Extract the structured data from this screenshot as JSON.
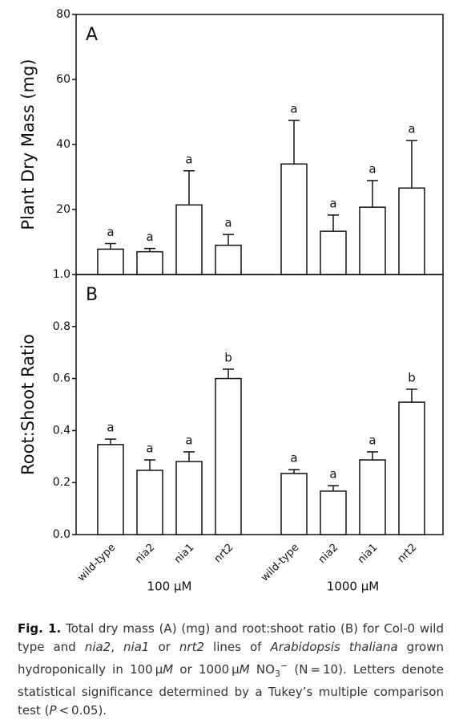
{
  "chart_data": [
    {
      "type": "bar",
      "panel_label": "A",
      "y_label": "Plant Dry Mass (mg)",
      "values": [
        7.8,
        7.0,
        21.4,
        9.0,
        34.0,
        13.3,
        20.7,
        26.6
      ],
      "errors": [
        1.7,
        1.0,
        10.5,
        3.3,
        13.4,
        5.0,
        8.2,
        14.6
      ],
      "letters": [
        "a",
        "a",
        "a",
        "a",
        "a",
        "a",
        "a",
        "a"
      ],
      "color": "#ffffff",
      "ylim": [
        0,
        80
      ],
      "yticks": [
        20,
        40,
        60,
        80
      ]
    },
    {
      "type": "bar",
      "panel_label": "B",
      "y_label": "Root:Shoot Ratio",
      "categories": [
        "wild-type",
        "nia2",
        "nia1",
        "nrt2",
        "wild-type",
        "nia2",
        "nia1",
        "nrt2"
      ],
      "groups": [
        "100 μM",
        "1000 μM"
      ],
      "values": [
        0.346,
        0.247,
        0.281,
        0.6,
        0.235,
        0.167,
        0.287,
        0.509
      ],
      "errors": [
        0.021,
        0.04,
        0.037,
        0.036,
        0.015,
        0.021,
        0.031,
        0.05
      ],
      "letters": [
        "a",
        "a",
        "a",
        "b",
        "a",
        "a",
        "a",
        "b"
      ],
      "color": "#ffffff",
      "ylim": [
        0,
        1
      ],
      "yticks": [
        {
          "value": 0,
          "label": "0.0"
        },
        0.2,
        0.4,
        0.6,
        0.8,
        {
          "value": 1,
          "label": "1.0"
        }
      ]
    }
  ],
  "caption": {
    "label": "Fig.  1.",
    "segments": [
      {
        "text": " Total dry mass (A) (mg) and root:shoot ratio (B) for Col-0 wild type and "
      },
      {
        "text": "nia2",
        "italic": true
      },
      {
        "text": ", "
      },
      {
        "text": "nia1",
        "italic": true
      },
      {
        "text": " or "
      },
      {
        "text": "nrt2",
        "italic": true
      },
      {
        "text": " lines of "
      },
      {
        "text": "Arabidopsis thaliana",
        "italic": true
      },
      {
        "text": " grown hydroponically in 100 μ"
      },
      {
        "text": "M",
        "italic": true
      },
      {
        "text": " or 1000 μ"
      },
      {
        "text": "M",
        "italic": true
      },
      {
        "text": " NO"
      },
      {
        "text": "3",
        "sub": true
      },
      {
        "text": "−",
        "sup": true
      },
      {
        "text": " (N = 10). Letters denote statistical significance determined by a Tukey’s multiple comparison test ("
      },
      {
        "text": "P",
        "italic": true
      },
      {
        "text": " < 0.05)."
      }
    ]
  }
}
